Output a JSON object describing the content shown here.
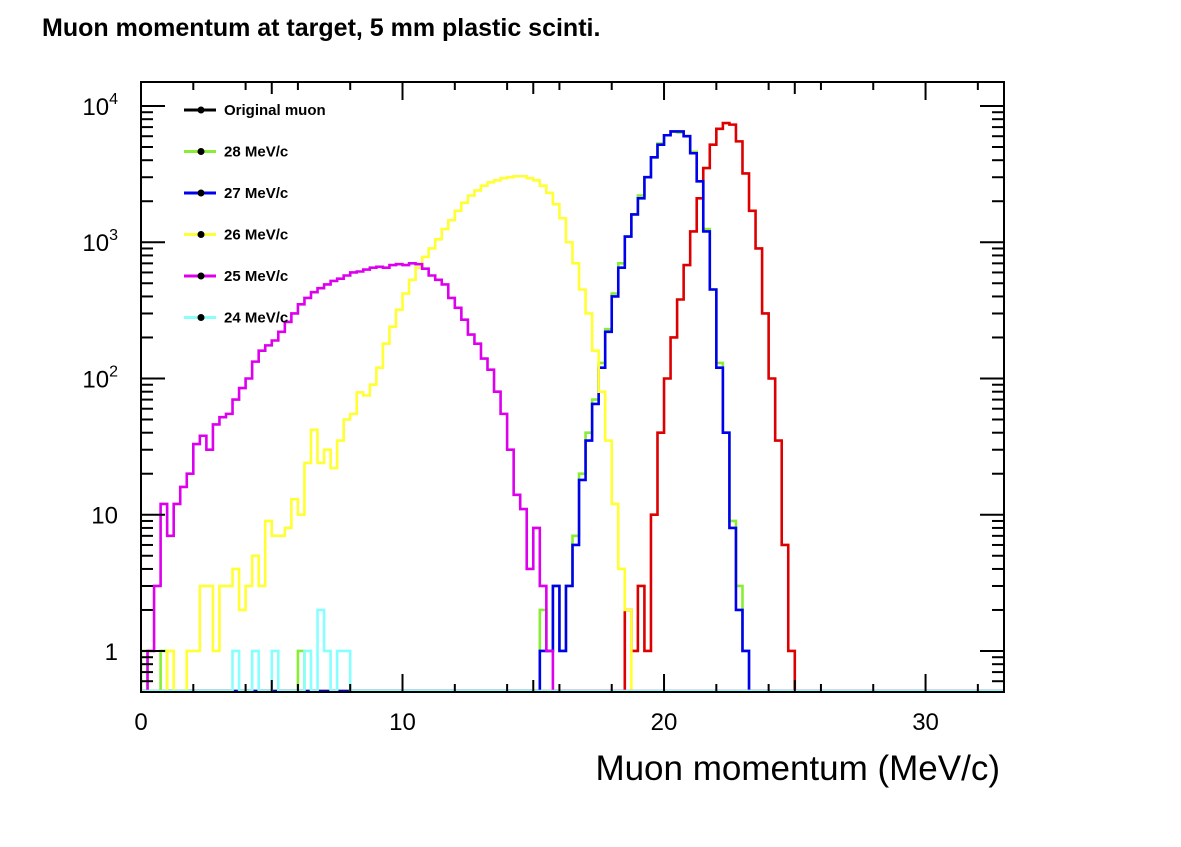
{
  "chart_data": {
    "type": "histogram",
    "title": "Muon momentum at target, 5 mm plastic scinti.",
    "xlabel": "Muon momentum (MeV/c)",
    "ylabel": "",
    "xlim": [
      0,
      33
    ],
    "ylim": [
      0.5,
      15000
    ],
    "y_scale": "log",
    "x_ticks": [
      "0",
      "10",
      "20",
      "30"
    ],
    "y_ticks": [
      {
        "value": 1,
        "base": "1",
        "exp": ""
      },
      {
        "value": 10,
        "base": "10",
        "exp": ""
      },
      {
        "value": 100,
        "base": "10",
        "exp": "2"
      },
      {
        "value": 1000,
        "base": "10",
        "exp": "3"
      },
      {
        "value": 10000,
        "base": "10",
        "exp": "4"
      }
    ],
    "grid": false,
    "legend_position": "top-left",
    "bin_width": 0.25,
    "legend": [
      {
        "label": "Original muon",
        "color": "#000000"
      },
      {
        "label": "28 MeV/c",
        "color": "#88ee33"
      },
      {
        "label": "27 MeV/c",
        "color": "#0000ee"
      },
      {
        "label": "26 MeV/c",
        "color": "#ffff33"
      },
      {
        "label": "25 MeV/c",
        "color": "#dd00ee"
      },
      {
        "label": "24 MeV/c",
        "color": "#88ffff"
      }
    ],
    "series": [
      {
        "color": "#dd0000",
        "start": 18.5,
        "values": [
          2,
          1,
          3,
          1,
          10,
          40,
          100,
          200,
          380,
          680,
          1200,
          2100,
          3500,
          5200,
          6800,
          7500,
          7300,
          5500,
          3200,
          1700,
          900,
          300,
          100,
          35,
          6,
          1
        ]
      },
      {
        "name": "28 MeV/c",
        "color": "#88ee33",
        "start": 0,
        "values": [
          1,
          0,
          0,
          1,
          0,
          0,
          0,
          0,
          0,
          0,
          0,
          0,
          0,
          0,
          0,
          0,
          0,
          0,
          0,
          0,
          0,
          0,
          0,
          0,
          1,
          0,
          0,
          0,
          0,
          0,
          0,
          0,
          0,
          0,
          0,
          0,
          0,
          0,
          0,
          0,
          0,
          0,
          0,
          0,
          0,
          0,
          0,
          0,
          0,
          0,
          0,
          0,
          0,
          0,
          0,
          0,
          0,
          0,
          0,
          0,
          0,
          2,
          1,
          3,
          1,
          3,
          7,
          20,
          40,
          70,
          130,
          230,
          420,
          700,
          1100,
          1600,
          2200,
          3000,
          4200,
          5300,
          6100,
          6500,
          6400,
          6000,
          4600,
          2800,
          1250,
          450,
          130,
          40,
          9,
          3,
          1
        ]
      },
      {
        "name": "27 MeV/c",
        "color": "#0000ee",
        "start": 15.25,
        "values": [
          1,
          1,
          3,
          1,
          3,
          6,
          18,
          35,
          65,
          120,
          220,
          400,
          650,
          1100,
          1600,
          2100,
          3000,
          4200,
          5200,
          6100,
          6500,
          6500,
          6000,
          4500,
          2800,
          1200,
          450,
          120,
          40,
          8,
          2,
          1
        ]
      },
      {
        "name": "26 MeV/c",
        "color": "#ffff33",
        "start": 0.75,
        "values": [
          0,
          1,
          0,
          0,
          1,
          1,
          3,
          3,
          1,
          3,
          3,
          4,
          2,
          3,
          5,
          3,
          9,
          7,
          7,
          8,
          13,
          10,
          24,
          42,
          24,
          30,
          22,
          35,
          50,
          55,
          79,
          75,
          90,
          120,
          180,
          240,
          320,
          420,
          530,
          650,
          780,
          900,
          1050,
          1250,
          1450,
          1700,
          1950,
          2200,
          2400,
          2600,
          2750,
          2850,
          2950,
          3000,
          3050,
          3050,
          2950,
          2850,
          2600,
          2300,
          1900,
          1500,
          1000,
          700,
          450,
          300,
          160,
          80,
          35,
          12,
          4,
          2
        ]
      },
      {
        "name": "25 MeV/c",
        "color": "#dd00ee",
        "start": 0.25,
        "values": [
          1,
          3,
          12,
          7,
          12,
          16,
          20,
          33,
          38,
          30,
          46,
          52,
          55,
          70,
          85,
          100,
          133,
          160,
          175,
          190,
          220,
          260,
          300,
          350,
          390,
          430,
          460,
          490,
          520,
          540,
          570,
          600,
          610,
          630,
          650,
          660,
          650,
          680,
          690,
          680,
          700,
          690,
          640,
          570,
          530,
          490,
          390,
          330,
          270,
          210,
          180,
          140,
          116,
          80,
          55,
          30,
          14,
          11,
          4,
          8,
          3,
          1
        ]
      },
      {
        "name": "24 MeV/c",
        "color": "#88ffff",
        "start": 3.5,
        "values": [
          1,
          0,
          0,
          1,
          0,
          0,
          1,
          0,
          0,
          0,
          0,
          1,
          0,
          2,
          1,
          0,
          1,
          1
        ]
      }
    ]
  }
}
